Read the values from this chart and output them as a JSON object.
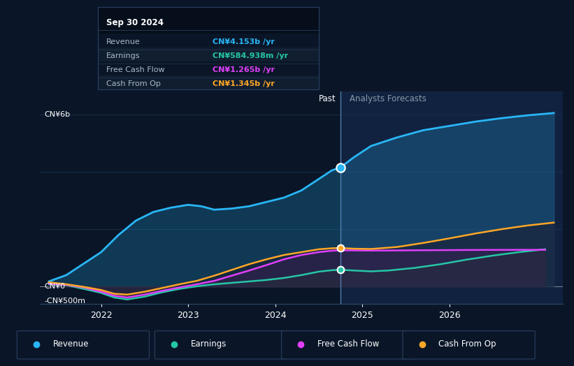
{
  "bg_color": "#0a1628",
  "plot_bg_color": "#0a1628",
  "divider_x": 2024.75,
  "ylim": [
    -600000000,
    6800000000
  ],
  "xlim": [
    2021.3,
    2027.3
  ],
  "revenue_color": "#29b6f6",
  "earnings_color": "#26c6a6",
  "fcf_color": "#e040fb",
  "cashop_color": "#ffa726",
  "forecast_bg": "#112240",
  "tooltip_bg": "#050e1a",
  "tooltip_border": "#2a4060",
  "grid_color": "#1a3050",
  "zero_line_color": "#cccccc",
  "revenue_past_x": [
    2021.4,
    2021.6,
    2021.8,
    2022.0,
    2022.2,
    2022.4,
    2022.6,
    2022.8,
    2023.0,
    2023.15,
    2023.3,
    2023.5,
    2023.7,
    2023.9,
    2024.1,
    2024.3,
    2024.5,
    2024.65,
    2024.75
  ],
  "revenue_past_y": [
    180000000,
    400000000,
    800000000,
    1200000000,
    1800000000,
    2300000000,
    2600000000,
    2750000000,
    2850000000,
    2800000000,
    2680000000,
    2720000000,
    2800000000,
    2950000000,
    3100000000,
    3350000000,
    3750000000,
    4050000000,
    4153000000
  ],
  "revenue_future_x": [
    2024.75,
    2024.9,
    2025.1,
    2025.4,
    2025.7,
    2026.0,
    2026.3,
    2026.6,
    2026.9,
    2027.2
  ],
  "revenue_future_y": [
    4153000000,
    4500000000,
    4900000000,
    5200000000,
    5450000000,
    5600000000,
    5750000000,
    5870000000,
    5970000000,
    6050000000
  ],
  "earnings_past_x": [
    2021.4,
    2021.6,
    2021.8,
    2022.0,
    2022.15,
    2022.3,
    2022.5,
    2022.7,
    2022.9,
    2023.1,
    2023.3,
    2023.5,
    2023.7,
    2023.9,
    2024.1,
    2024.3,
    2024.5,
    2024.65,
    2024.75
  ],
  "earnings_past_y": [
    80000000,
    50000000,
    -80000000,
    -220000000,
    -380000000,
    -450000000,
    -350000000,
    -200000000,
    -80000000,
    10000000,
    80000000,
    130000000,
    180000000,
    230000000,
    300000000,
    400000000,
    520000000,
    570000000,
    584938000
  ],
  "earnings_future_x": [
    2024.75,
    2024.9,
    2025.1,
    2025.3,
    2025.6,
    2025.9,
    2026.2,
    2026.5,
    2026.8,
    2027.1
  ],
  "earnings_future_y": [
    584938000,
    560000000,
    530000000,
    560000000,
    650000000,
    780000000,
    940000000,
    1080000000,
    1200000000,
    1300000000
  ],
  "fcf_past_x": [
    2021.4,
    2021.6,
    2021.8,
    2022.0,
    2022.15,
    2022.3,
    2022.5,
    2022.7,
    2022.9,
    2023.1,
    2023.3,
    2023.5,
    2023.7,
    2023.9,
    2024.1,
    2024.3,
    2024.5,
    2024.65,
    2024.75
  ],
  "fcf_past_y": [
    100000000,
    60000000,
    -30000000,
    -180000000,
    -320000000,
    -380000000,
    -280000000,
    -150000000,
    -30000000,
    80000000,
    200000000,
    380000000,
    560000000,
    750000000,
    950000000,
    1100000000,
    1200000000,
    1250000000,
    1265000000
  ],
  "fcf_future_x": [
    2024.75,
    2024.9,
    2025.1,
    2025.3,
    2025.6,
    2025.9,
    2026.2,
    2026.5,
    2026.8,
    2027.1
  ],
  "fcf_future_y": [
    1265000000,
    1260000000,
    1255000000,
    1258000000,
    1265000000,
    1270000000,
    1275000000,
    1278000000,
    1280000000,
    1282000000
  ],
  "cashop_past_x": [
    2021.4,
    2021.6,
    2021.8,
    2022.0,
    2022.15,
    2022.3,
    2022.5,
    2022.7,
    2022.9,
    2023.1,
    2023.3,
    2023.5,
    2023.7,
    2023.9,
    2024.1,
    2024.3,
    2024.5,
    2024.65,
    2024.75
  ],
  "cashop_past_y": [
    150000000,
    80000000,
    -10000000,
    -120000000,
    -250000000,
    -280000000,
    -180000000,
    -50000000,
    80000000,
    200000000,
    380000000,
    580000000,
    780000000,
    950000000,
    1100000000,
    1200000000,
    1300000000,
    1335000000,
    1345000000
  ],
  "cashop_future_x": [
    2024.75,
    2024.9,
    2025.1,
    2025.4,
    2025.7,
    2026.0,
    2026.3,
    2026.6,
    2026.9,
    2027.2
  ],
  "cashop_future_y": [
    1345000000,
    1320000000,
    1310000000,
    1380000000,
    1520000000,
    1680000000,
    1850000000,
    2000000000,
    2130000000,
    2230000000
  ],
  "xticks": [
    2022,
    2023,
    2024,
    2025,
    2026
  ],
  "xtick_labels": [
    "2022",
    "2023",
    "2024",
    "2025",
    "2026"
  ],
  "legend_items": [
    "Revenue",
    "Earnings",
    "Free Cash Flow",
    "Cash From Op"
  ],
  "legend_colors": [
    "#29b6f6",
    "#26c6a6",
    "#e040fb",
    "#ffa726"
  ],
  "tooltip": {
    "date": "Sep 30 2024",
    "rows": [
      {
        "label": "Revenue",
        "value": "CN¥4.153b /yr",
        "color": "#29b6f6"
      },
      {
        "label": "Earnings",
        "value": "CN¥584.938m /yr",
        "color": "#26c6a6"
      },
      {
        "label": "Free Cash Flow",
        "value": "CN¥1.265b /yr",
        "color": "#e040fb"
      },
      {
        "label": "Cash From Op",
        "value": "CN¥1.345b /yr",
        "color": "#ffa726"
      }
    ]
  }
}
